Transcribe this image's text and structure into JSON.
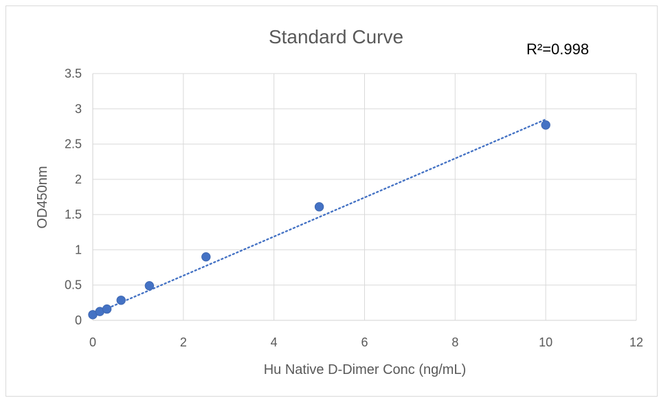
{
  "chart_data": {
    "type": "scatter",
    "title": "Standard Curve",
    "xlabel": "Hu Native D-Dimer Conc (ng/mL)",
    "ylabel": "OD450nm",
    "annotation": "R²=0.998",
    "xlim": [
      0,
      12
    ],
    "ylim": [
      0,
      3.5
    ],
    "xticks": [
      0,
      2,
      4,
      6,
      8,
      10,
      12
    ],
    "yticks": [
      0,
      0.5,
      1,
      1.5,
      2,
      2.5,
      3,
      3.5
    ],
    "x_tick_labels": [
      "0",
      "2",
      "4",
      "6",
      "8",
      "10",
      "12"
    ],
    "y_tick_labels": [
      "0",
      "0.5",
      "1",
      "1.5",
      "2",
      "2.5",
      "3",
      "3.5"
    ],
    "grid": true,
    "legend": "none",
    "series": [
      {
        "x": [
          0,
          0.156,
          0.3125,
          0.625,
          1.25,
          2.5,
          5,
          10
        ],
        "y": [
          0.08,
          0.125,
          0.16,
          0.285,
          0.49,
          0.9,
          1.61,
          2.77
        ],
        "color": "#4472c4"
      }
    ],
    "trendline": {
      "type": "linear",
      "style": "dotted",
      "color": "#4472c4",
      "x_range": [
        0,
        10
      ],
      "y_range": [
        0.08,
        2.85
      ]
    }
  }
}
